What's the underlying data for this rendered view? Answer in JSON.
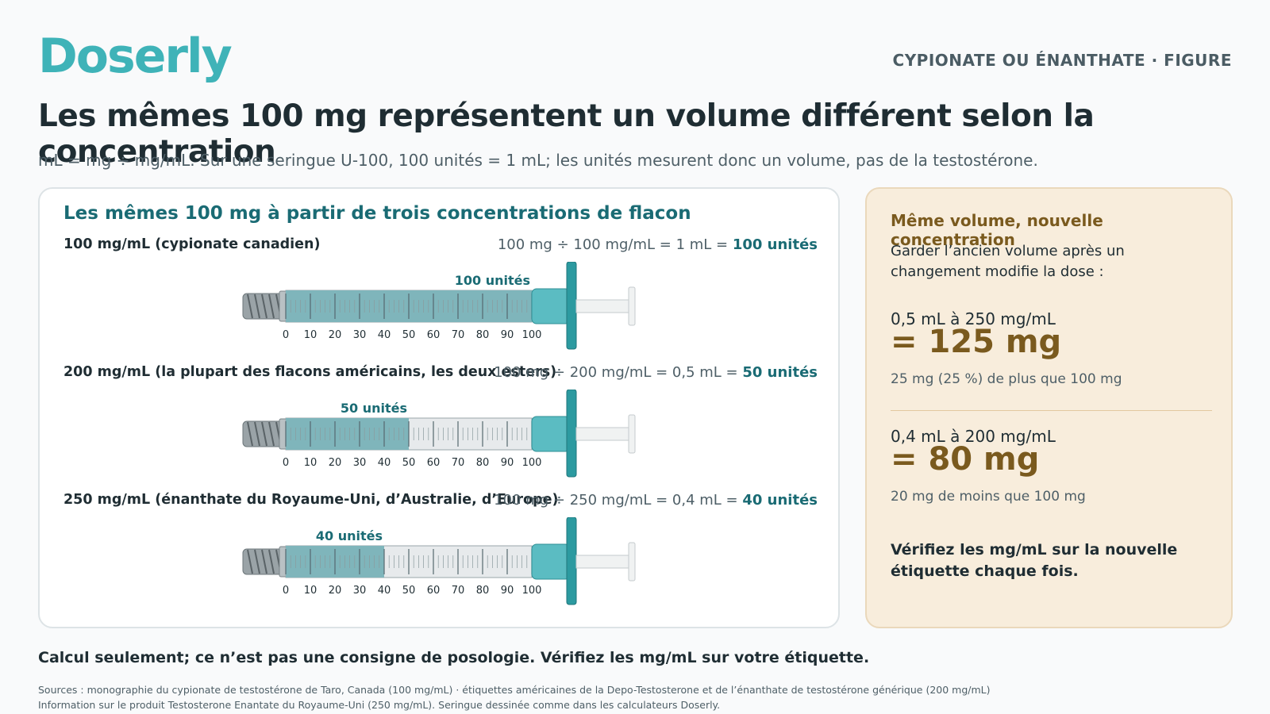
{
  "brand": "Doserly",
  "kicker": "CYPIONATE OU ÉNANTHATE · FIGURE",
  "headline": "Les mêmes 100 mg représentent un volume différent selon la concentration",
  "subtitle": "mL = mg ÷ mg/mL. Sur une seringue U-100, 100 unités = 1 mL; les unités mesurent donc un volume, pas de la testostérone.",
  "left_card": {
    "title": "Les mêmes 100 mg à partir de trois concentrations de flacon",
    "ticks": [
      "0",
      "10",
      "20",
      "30",
      "40",
      "50",
      "60",
      "70",
      "80",
      "90",
      "100"
    ],
    "rows": [
      {
        "label": "100 mg/mL (cypionate canadien)",
        "equation": "100 mg ÷ 100 mg/mL = 1 mL = ",
        "units_text": "100 unités",
        "fill_units": 100,
        "fill_label": "100 unités"
      },
      {
        "label": "200 mg/mL (la plupart des flacons américains, les deux esters)",
        "equation": "100 mg ÷ 200 mg/mL = 0,5 mL = ",
        "units_text": "50 unités",
        "fill_units": 50,
        "fill_label": "50 unités"
      },
      {
        "label": "250 mg/mL (énanthate du Royaume-Uni, d’Australie, d’Europe)",
        "equation": "100 mg ÷ 250 mg/mL = 0,4 mL = ",
        "units_text": "40 unités",
        "fill_units": 40,
        "fill_label": "40 unités"
      }
    ]
  },
  "right_card": {
    "title": "Même volume, nouvelle concentration",
    "intro": "Garder l’ancien volume après un changement modifie la dose :",
    "case1_label": "0,5 mL à 250 mg/mL",
    "case1_result": "= 125 mg",
    "case1_note": "25 mg (25 %) de plus que 100 mg",
    "case2_label": "0,4 mL à 200 mg/mL",
    "case2_result": "= 80 mg",
    "case2_note": "20 mg de moins que 100 mg",
    "final": "Vérifiez les mg/mL sur la nouvelle étiquette chaque fois."
  },
  "disclaimer": "Calcul seulement; ce n’est pas une consigne de posologie. Vérifiez les mg/mL sur votre étiquette.",
  "sources_line1": "Sources : monographie du cypionate de testostérone de Taro, Canada (100 mg/mL) · étiquettes américaines de la Depo-Testosterone et de l’énanthate de testostérone générique (200 mg/mL)",
  "sources_line2": "Information sur le produit Testosterone Enantate du Royaume-Uni (250 mg/mL). Seringue dessinée comme dans les calculateurs Doserly.",
  "colors": {
    "brand": "#3fb3b8",
    "accent_teal": "#1a6b74",
    "fill": "#7fb5bb",
    "hub": "#5bbcc2",
    "gold": "#7a5a1e"
  }
}
